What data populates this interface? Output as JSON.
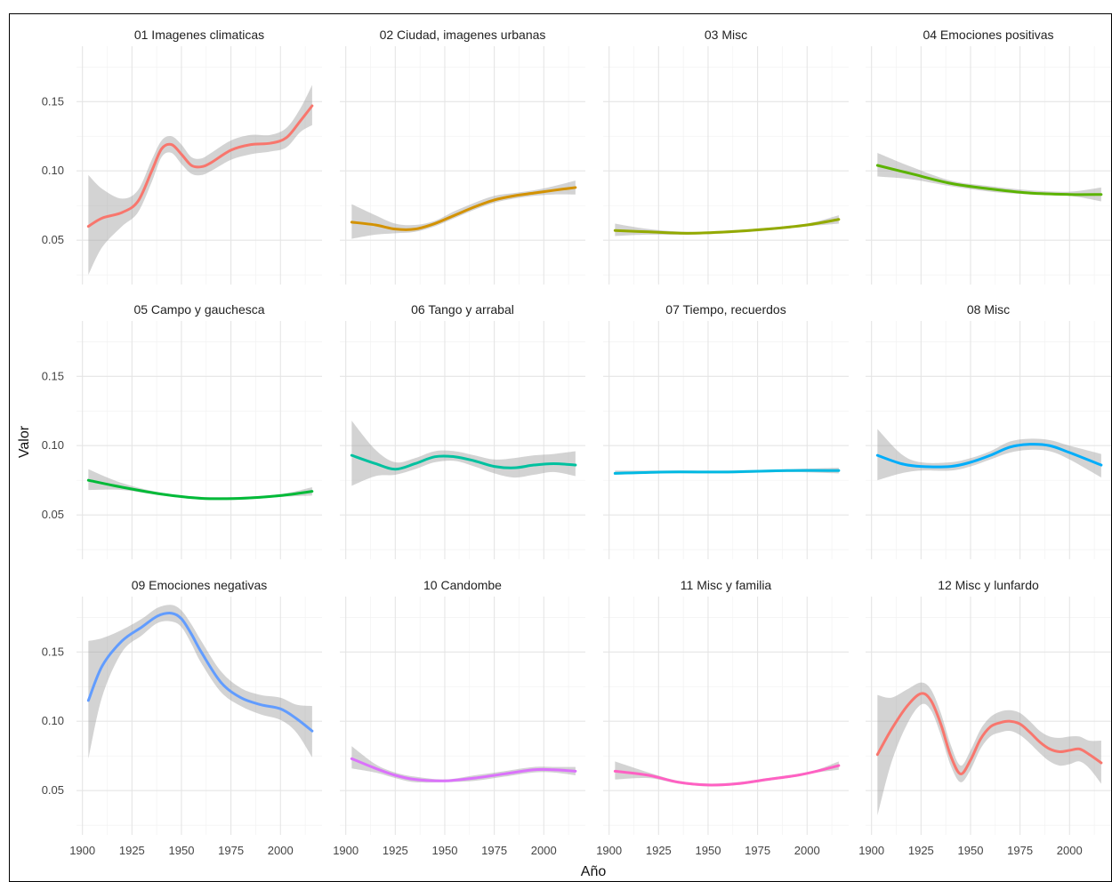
{
  "chart_data": {
    "type": "line",
    "facet_layout": {
      "rows": 3,
      "cols": 4
    },
    "xlabel": "Año",
    "ylabel": "Valor",
    "xlim": [
      1897,
      2021
    ],
    "ylim": [
      0.018,
      0.19
    ],
    "x_ticks": [
      1900,
      1925,
      1950,
      1975,
      2000
    ],
    "x_tick_labels": [
      "1900",
      "1925",
      "1950",
      "1975",
      "2000"
    ],
    "y_ticks": [
      0.05,
      0.1,
      0.15
    ],
    "y_tick_labels": [
      "0.05",
      "0.10",
      "0.15"
    ],
    "grid": true,
    "series": [
      {
        "name": "01 Imagenes climaticas",
        "color": "#F8766D",
        "x": [
          1903,
          1910,
          1920,
          1928,
          1935,
          1940,
          1945,
          1950,
          1955,
          1960,
          1965,
          1975,
          1985,
          1995,
          2003,
          2010,
          2016
        ],
        "y": [
          0.06,
          0.066,
          0.07,
          0.078,
          0.1,
          0.116,
          0.119,
          0.112,
          0.104,
          0.103,
          0.106,
          0.115,
          0.119,
          0.12,
          0.124,
          0.136,
          0.147
        ],
        "lower": [
          0.025,
          0.045,
          0.06,
          0.07,
          0.092,
          0.11,
          0.113,
          0.105,
          0.098,
          0.097,
          0.1,
          0.108,
          0.112,
          0.114,
          0.117,
          0.128,
          0.133
        ],
        "upper": [
          0.097,
          0.087,
          0.08,
          0.086,
          0.108,
          0.122,
          0.125,
          0.119,
          0.11,
          0.109,
          0.113,
          0.122,
          0.126,
          0.126,
          0.131,
          0.145,
          0.162
        ]
      },
      {
        "name": "02 Ciudad, imagenes urbanas",
        "color": "#D39200",
        "x": [
          1903,
          1915,
          1925,
          1935,
          1945,
          1955,
          1965,
          1975,
          1985,
          1995,
          2005,
          2016
        ],
        "y": [
          0.063,
          0.061,
          0.058,
          0.058,
          0.062,
          0.068,
          0.074,
          0.079,
          0.082,
          0.084,
          0.086,
          0.088
        ],
        "lower": [
          0.051,
          0.054,
          0.055,
          0.056,
          0.06,
          0.066,
          0.072,
          0.077,
          0.08,
          0.082,
          0.083,
          0.083
        ],
        "upper": [
          0.076,
          0.068,
          0.062,
          0.061,
          0.064,
          0.071,
          0.077,
          0.082,
          0.084,
          0.086,
          0.089,
          0.093
        ]
      },
      {
        "name": "03 Misc",
        "color": "#93AA00",
        "x": [
          1903,
          1920,
          1940,
          1960,
          1980,
          2000,
          2016
        ],
        "y": [
          0.057,
          0.056,
          0.055,
          0.056,
          0.058,
          0.061,
          0.065
        ],
        "lower": [
          0.053,
          0.054,
          0.054,
          0.055,
          0.057,
          0.06,
          0.062
        ],
        "upper": [
          0.062,
          0.058,
          0.056,
          0.057,
          0.059,
          0.062,
          0.068
        ]
      },
      {
        "name": "04 Emociones positivas",
        "color": "#5BB300",
        "x": [
          1903,
          1920,
          1940,
          1960,
          1980,
          2000,
          2016
        ],
        "y": [
          0.104,
          0.098,
          0.091,
          0.087,
          0.084,
          0.083,
          0.083
        ],
        "lower": [
          0.096,
          0.094,
          0.089,
          0.085,
          0.083,
          0.082,
          0.078
        ],
        "upper": [
          0.113,
          0.103,
          0.093,
          0.089,
          0.086,
          0.085,
          0.088
        ]
      },
      {
        "name": "05 Campo y gauchesca",
        "color": "#00BA38",
        "x": [
          1903,
          1920,
          1940,
          1960,
          1980,
          2000,
          2016
        ],
        "y": [
          0.075,
          0.07,
          0.065,
          0.062,
          0.062,
          0.064,
          0.067
        ],
        "lower": [
          0.068,
          0.068,
          0.064,
          0.061,
          0.061,
          0.063,
          0.064
        ],
        "upper": [
          0.083,
          0.073,
          0.066,
          0.063,
          0.063,
          0.065,
          0.07
        ]
      },
      {
        "name": "06 Tango y arrabal",
        "color": "#00C19F",
        "x": [
          1903,
          1915,
          1925,
          1935,
          1945,
          1955,
          1965,
          1975,
          1985,
          1995,
          2005,
          2016
        ],
        "y": [
          0.093,
          0.087,
          0.083,
          0.087,
          0.092,
          0.092,
          0.089,
          0.085,
          0.084,
          0.086,
          0.087,
          0.086
        ],
        "lower": [
          0.071,
          0.078,
          0.079,
          0.083,
          0.088,
          0.089,
          0.085,
          0.08,
          0.077,
          0.079,
          0.081,
          0.078
        ],
        "upper": [
          0.118,
          0.097,
          0.088,
          0.091,
          0.096,
          0.096,
          0.093,
          0.09,
          0.091,
          0.093,
          0.094,
          0.096
        ]
      },
      {
        "name": "07 Tiempo, recuerdos",
        "color": "#00B9E3",
        "x": [
          1903,
          1930,
          1960,
          1990,
          2016
        ],
        "y": [
          0.08,
          0.081,
          0.081,
          0.082,
          0.082
        ],
        "lower": [
          0.079,
          0.08,
          0.08,
          0.081,
          0.08
        ],
        "upper": [
          0.082,
          0.082,
          0.082,
          0.083,
          0.084
        ]
      },
      {
        "name": "08 Misc",
        "color": "#00ADFA",
        "x": [
          1903,
          1915,
          1925,
          1940,
          1950,
          1960,
          1970,
          1980,
          1990,
          2000,
          2016
        ],
        "y": [
          0.093,
          0.087,
          0.085,
          0.085,
          0.088,
          0.093,
          0.099,
          0.101,
          0.1,
          0.095,
          0.086
        ],
        "lower": [
          0.075,
          0.08,
          0.082,
          0.082,
          0.085,
          0.09,
          0.095,
          0.097,
          0.096,
          0.09,
          0.077
        ],
        "upper": [
          0.112,
          0.094,
          0.088,
          0.088,
          0.091,
          0.096,
          0.103,
          0.105,
          0.104,
          0.1,
          0.094
        ]
      },
      {
        "name": "09 Emociones negativas",
        "color": "#619CFF",
        "x": [
          1903,
          1910,
          1920,
          1930,
          1938,
          1945,
          1950,
          1955,
          1960,
          1970,
          1980,
          1990,
          2000,
          2008,
          2016
        ],
        "y": [
          0.115,
          0.14,
          0.158,
          0.168,
          0.176,
          0.178,
          0.174,
          0.163,
          0.15,
          0.128,
          0.117,
          0.112,
          0.109,
          0.102,
          0.093
        ],
        "lower": [
          0.073,
          0.118,
          0.15,
          0.162,
          0.171,
          0.172,
          0.168,
          0.156,
          0.142,
          0.121,
          0.111,
          0.105,
          0.101,
          0.092,
          0.074
        ],
        "upper": [
          0.158,
          0.16,
          0.166,
          0.174,
          0.182,
          0.184,
          0.18,
          0.17,
          0.158,
          0.136,
          0.124,
          0.119,
          0.117,
          0.112,
          0.111
        ]
      },
      {
        "name": "10 Candombe",
        "color": "#DB72FB",
        "x": [
          1903,
          1915,
          1925,
          1935,
          1950,
          1965,
          1980,
          1995,
          2005,
          2016
        ],
        "y": [
          0.073,
          0.066,
          0.061,
          0.058,
          0.057,
          0.059,
          0.062,
          0.065,
          0.065,
          0.064
        ],
        "lower": [
          0.066,
          0.063,
          0.059,
          0.056,
          0.056,
          0.057,
          0.06,
          0.063,
          0.063,
          0.061
        ],
        "upper": [
          0.082,
          0.069,
          0.063,
          0.06,
          0.058,
          0.061,
          0.064,
          0.067,
          0.067,
          0.067
        ]
      },
      {
        "name": "11 Misc y familia",
        "color": "#FF61C3",
        "x": [
          1903,
          1920,
          1935,
          1950,
          1965,
          1980,
          1995,
          2005,
          2016
        ],
        "y": [
          0.064,
          0.061,
          0.056,
          0.054,
          0.055,
          0.058,
          0.061,
          0.064,
          0.068
        ],
        "lower": [
          0.058,
          0.059,
          0.055,
          0.053,
          0.054,
          0.057,
          0.06,
          0.063,
          0.065
        ],
        "upper": [
          0.071,
          0.063,
          0.057,
          0.055,
          0.056,
          0.059,
          0.062,
          0.065,
          0.071
        ]
      },
      {
        "name": "12 Misc y lunfardo",
        "color": "#F8766D",
        "x": [
          1903,
          1910,
          1918,
          1925,
          1930,
          1935,
          1940,
          1945,
          1950,
          1955,
          1960,
          1965,
          1970,
          1975,
          1980,
          1985,
          1990,
          1995,
          2000,
          2005,
          2010,
          2016
        ],
        "y": [
          0.076,
          0.094,
          0.111,
          0.12,
          0.115,
          0.098,
          0.075,
          0.062,
          0.072,
          0.087,
          0.096,
          0.099,
          0.1,
          0.098,
          0.092,
          0.085,
          0.08,
          0.078,
          0.079,
          0.08,
          0.076,
          0.07
        ],
        "lower": [
          0.032,
          0.07,
          0.098,
          0.112,
          0.108,
          0.09,
          0.068,
          0.056,
          0.065,
          0.08,
          0.089,
          0.092,
          0.093,
          0.09,
          0.084,
          0.077,
          0.071,
          0.068,
          0.069,
          0.071,
          0.066,
          0.055
        ],
        "upper": [
          0.119,
          0.117,
          0.123,
          0.128,
          0.123,
          0.106,
          0.083,
          0.068,
          0.079,
          0.094,
          0.103,
          0.107,
          0.108,
          0.106,
          0.1,
          0.093,
          0.089,
          0.088,
          0.089,
          0.089,
          0.086,
          0.086
        ]
      }
    ]
  }
}
